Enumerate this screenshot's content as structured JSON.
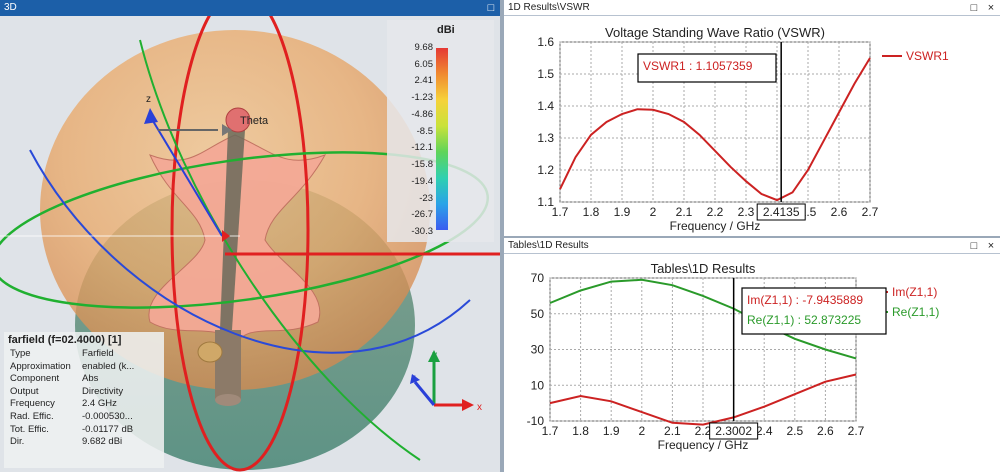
{
  "view3d": {
    "title": "3D",
    "legend": {
      "unit": "dBi",
      "ticks": [
        "9.68",
        "6.05",
        "2.41",
        "-1.23",
        "-4.86",
        "-8.5",
        "-12.1",
        "-15.8",
        "-19.4",
        "-23",
        "-26.7",
        "-30.3"
      ]
    },
    "axes": {
      "z": "z",
      "y": "y",
      "x": "x",
      "theta": "Theta"
    },
    "info": {
      "title": "farfield (f=02.4000) [1]",
      "rows": [
        {
          "k": "Type",
          "v": "Farfield"
        },
        {
          "k": "Approximation",
          "v": "enabled (k..."
        },
        {
          "k": "Component",
          "v": "Abs"
        },
        {
          "k": "Output",
          "v": "Directivity"
        },
        {
          "k": "Frequency",
          "v": "2.4 GHz"
        },
        {
          "k": "Rad. Effic.",
          "v": "-0.000530..."
        },
        {
          "k": "Tot. Effic.",
          "v": "-0.01177 dB"
        },
        {
          "k": "Dir.",
          "v": "9.682 dBi"
        }
      ]
    }
  },
  "vswr": {
    "pane_title": "1D Results\\VSWR",
    "window_buttons": [
      "□",
      "×"
    ],
    "marker_label": "2.4135",
    "annotation": "VSWR1 : 1.1057359"
  },
  "tables": {
    "pane_title": "Tables\\1D Results",
    "window_buttons": [
      "□",
      "×"
    ],
    "marker_label": "2.3002",
    "annotations": [
      "Im(Z1,1) : -7.9435889",
      "Re(Z1,1) : 52.873225"
    ]
  },
  "chart_data": [
    {
      "type": "line",
      "title": "Voltage Standing Wave Ratio (VSWR)",
      "xlabel": "Frequency / GHz",
      "ylabel": "",
      "xlim": [
        1.7,
        2.7
      ],
      "ylim": [
        1.1,
        1.6
      ],
      "x_ticks": [
        "1.7",
        "1.8",
        "1.9",
        "2",
        "2.1",
        "2.2",
        "2.3",
        "2.4",
        "2.5",
        "2.6",
        "2.7"
      ],
      "y_ticks": [
        "1.6",
        "1.5",
        "1.4",
        "1.3",
        "1.2",
        "1.1"
      ],
      "grid": true,
      "legend_position": "right",
      "series": [
        {
          "name": "VSWR1",
          "color": "#cc2222",
          "x": [
            1.7,
            1.75,
            1.8,
            1.85,
            1.9,
            1.95,
            2.0,
            2.05,
            2.1,
            2.15,
            2.2,
            2.25,
            2.3,
            2.35,
            2.4,
            2.45,
            2.5,
            2.55,
            2.6,
            2.65,
            2.7
          ],
          "y": [
            1.14,
            1.24,
            1.31,
            1.35,
            1.375,
            1.39,
            1.388,
            1.375,
            1.35,
            1.31,
            1.26,
            1.21,
            1.165,
            1.125,
            1.106,
            1.13,
            1.2,
            1.29,
            1.38,
            1.47,
            1.55
          ]
        }
      ],
      "marker_x": 2.4135
    },
    {
      "type": "line",
      "title": "Tables\\1D Results",
      "xlabel": "Frequency / GHz",
      "ylabel": "",
      "xlim": [
        1.7,
        2.7
      ],
      "ylim": [
        -10,
        70
      ],
      "x_ticks": [
        "1.7",
        "1.8",
        "1.9",
        "2",
        "2.1",
        "2.2",
        "2.3",
        "2.4",
        "2.5",
        "2.6",
        "2.7"
      ],
      "y_ticks": [
        "70",
        "50",
        "30",
        "10",
        "-10"
      ],
      "grid": true,
      "legend_position": "right",
      "series": [
        {
          "name": "Im(Z1,1)",
          "color": "#cc2222",
          "x": [
            1.7,
            1.8,
            1.9,
            2.0,
            2.1,
            2.2,
            2.3,
            2.4,
            2.5,
            2.6,
            2.7
          ],
          "y": [
            0,
            4,
            1,
            -5,
            -11,
            -12,
            -8,
            -2,
            5,
            12,
            16
          ]
        },
        {
          "name": "Re(Z1,1)",
          "color": "#2a9a2a",
          "x": [
            1.7,
            1.8,
            1.9,
            2.0,
            2.1,
            2.2,
            2.3,
            2.4,
            2.5,
            2.6,
            2.7
          ],
          "y": [
            56,
            63,
            68,
            69,
            66,
            60,
            52.9,
            44,
            36,
            30,
            25
          ]
        }
      ],
      "marker_x": 2.3002
    }
  ]
}
